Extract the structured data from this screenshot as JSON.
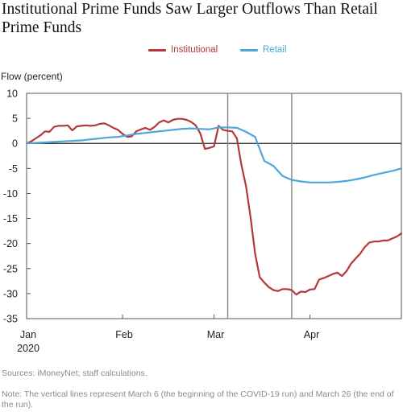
{
  "title": "Institutional Prime Funds Saw Larger Outflows Than Retail Prime Funds",
  "legend": [
    {
      "label": "Institutional",
      "color": "#b5373a"
    },
    {
      "label": "Retail",
      "color": "#4ea6d9"
    }
  ],
  "source": "Sources: iMoneyNet; staff calculations.",
  "note": "Note: The vertical lines represent March 6 (the beginning of the COVID-19 run) and March 26 (the end of the run).",
  "chart_data": {
    "type": "line",
    "ylabel": "Flow (percent)",
    "ylim": [
      -35,
      10
    ],
    "yticks": [
      10,
      5,
      0,
      -5,
      -10,
      -15,
      -20,
      -25,
      -30,
      -35
    ],
    "xlim": [
      0,
      82
    ],
    "xticks": [
      {
        "x": 0,
        "label": "Jan",
        "sublabel": "2020"
      },
      {
        "x": 21,
        "label": "Feb"
      },
      {
        "x": 41,
        "label": "Mar"
      },
      {
        "x": 62,
        "label": "Apr"
      }
    ],
    "vlines": [
      {
        "x": 44,
        "label": "March 6"
      },
      {
        "x": 58,
        "label": "March 26"
      }
    ],
    "zero_line": true,
    "grid": false,
    "series": [
      {
        "name": "Institutional",
        "color": "#b5373a",
        "x": [
          0,
          1,
          2,
          3,
          4,
          5,
          6,
          7,
          8,
          9,
          10,
          11,
          12,
          13,
          14,
          15,
          16,
          17,
          18,
          19,
          20,
          21,
          22,
          23,
          24,
          25,
          26,
          27,
          28,
          29,
          30,
          31,
          32,
          33,
          34,
          35,
          36,
          37,
          38,
          39,
          40,
          41,
          42,
          43,
          44,
          45,
          46,
          47,
          48,
          49,
          50,
          51,
          52,
          53,
          54,
          55,
          56,
          57,
          58,
          59,
          60,
          61,
          62,
          63,
          64,
          65,
          66,
          67,
          68,
          69,
          70,
          71,
          72,
          73,
          74,
          75,
          76,
          77,
          78,
          79,
          80,
          81,
          82
        ],
        "values": [
          0,
          0.4,
          1,
          1.6,
          2.4,
          2.3,
          3.3,
          3.5,
          3.5,
          3.6,
          2.6,
          3.4,
          3.5,
          3.6,
          3.5,
          3.6,
          3.9,
          4,
          3.6,
          3.1,
          2.7,
          1.9,
          1.3,
          1.4,
          2.4,
          2.8,
          3.1,
          2.7,
          3.3,
          4.2,
          4.6,
          4.2,
          4.7,
          4.9,
          4.9,
          4.7,
          4.3,
          3.6,
          2,
          -1.1,
          -0.9,
          -0.6,
          3.5,
          2.7,
          2.5,
          2.4,
          1,
          -4.3,
          -8.5,
          -14.8,
          -22,
          -26.7,
          -27.8,
          -28.7,
          -29.3,
          -29.5,
          -29.1,
          -29.1,
          -29.3,
          -30.2,
          -29.6,
          -29.7,
          -29.2,
          -29.1,
          -27.2,
          -26.9,
          -26.5,
          -26.1,
          -25.8,
          -26.5,
          -25.5,
          -24,
          -23,
          -22,
          -20.7,
          -19.8,
          -19.6,
          -19.6,
          -19.4,
          -19.4,
          -19,
          -18.6,
          -18
        ]
      },
      {
        "name": "Retail",
        "color": "#4ea6d9",
        "x": [
          0,
          2,
          4,
          6,
          8,
          10,
          12,
          14,
          16,
          18,
          20,
          22,
          24,
          26,
          28,
          30,
          32,
          34,
          36,
          38,
          40,
          42,
          44,
          46,
          48,
          50,
          52,
          54,
          56,
          58,
          60,
          62,
          64,
          66,
          68,
          70,
          72,
          74,
          76,
          78,
          80,
          82
        ],
        "values": [
          0,
          0.1,
          0.2,
          0.3,
          0.4,
          0.5,
          0.6,
          0.8,
          1,
          1.2,
          1.3,
          1.6,
          1.9,
          2.1,
          2.3,
          2.5,
          2.7,
          2.9,
          3,
          2.9,
          2.8,
          3.2,
          3.2,
          3.1,
          2.3,
          1.3,
          -3.5,
          -4.5,
          -6.5,
          -7.3,
          -7.6,
          -7.8,
          -7.8,
          -7.8,
          -7.7,
          -7.5,
          -7.2,
          -6.8,
          -6.3,
          -5.9,
          -5.5,
          -5
        ]
      }
    ]
  }
}
